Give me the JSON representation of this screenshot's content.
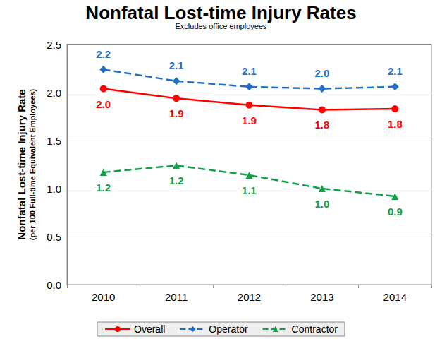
{
  "chart_data": {
    "type": "line",
    "title": "Nonfatal Lost-time Injury Rates",
    "subtitle": "Excludes office employees",
    "ylabel": "Nonfatal Lost-time Injury Rate",
    "ylabel_note": "(per 100 Full-time Equivalent Employees)",
    "categories": [
      "2010",
      "2011",
      "2012",
      "2013",
      "2014"
    ],
    "series": [
      {
        "name": "Overall",
        "color": "#ff0000",
        "marker": "circle",
        "line_style": "solid",
        "values": [
          2.04,
          1.94,
          1.87,
          1.82,
          1.83
        ],
        "value_labels": [
          "2.0",
          "1.9",
          "1.9",
          "1.8",
          "1.8"
        ]
      },
      {
        "name": "Operator",
        "color": "#1f6fc5",
        "marker": "diamond",
        "line_style": "dashed",
        "values": [
          2.24,
          2.12,
          2.06,
          2.04,
          2.06
        ],
        "value_labels": [
          "2.2",
          "2.1",
          "2.1",
          "2.0",
          "2.1"
        ]
      },
      {
        "name": "Contractor",
        "color": "#12a046",
        "marker": "triangle",
        "line_style": "dashed",
        "values": [
          1.17,
          1.24,
          1.14,
          1.0,
          0.92
        ],
        "value_labels": [
          "1.2",
          "1.2",
          "1.1",
          "1.0",
          "0.9"
        ]
      }
    ],
    "ylim": [
      0,
      2.5
    ],
    "yticks": [
      {
        "value": 0,
        "label": "0.0"
      },
      0.5,
      {
        "value": 1,
        "label": "1.0"
      },
      1.5,
      {
        "value": 2,
        "label": "2.0"
      },
      2.5
    ],
    "grid": true,
    "legend": "bottom",
    "data_labels": true
  }
}
